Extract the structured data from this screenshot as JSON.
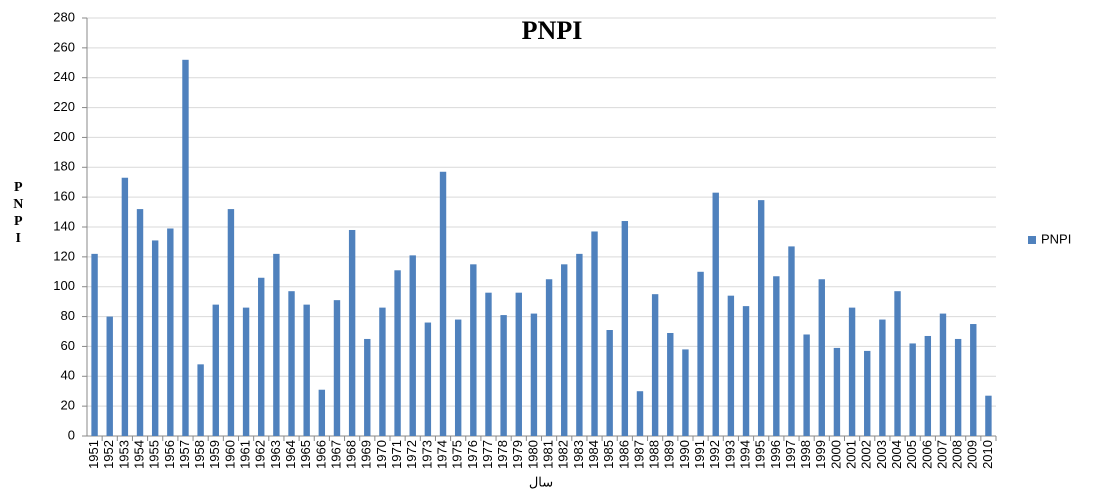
{
  "chart_data": {
    "type": "bar",
    "title": "PNPI",
    "y_label": "PNPI",
    "x_label": "سال",
    "categories": [
      "1951",
      "1952",
      "1953",
      "1954",
      "1955",
      "1956",
      "1957",
      "1958",
      "1959",
      "1960",
      "1961",
      "1962",
      "1963",
      "1964",
      "1965",
      "1966",
      "1967",
      "1968",
      "1969",
      "1970",
      "1971",
      "1972",
      "1973",
      "1974",
      "1975",
      "1976",
      "1977",
      "1978",
      "1979",
      "1980",
      "1981",
      "1982",
      "1983",
      "1984",
      "1985",
      "1986",
      "1987",
      "1988",
      "1989",
      "1990",
      "1991",
      "1992",
      "1993",
      "1994",
      "1995",
      "1996",
      "1997",
      "1998",
      "1999",
      "2000",
      "2001",
      "2002",
      "2003",
      "2004",
      "2005",
      "2006",
      "2007",
      "2008",
      "2009",
      "2010"
    ],
    "series": [
      {
        "name": "PNPI",
        "color": "#4f81bd",
        "values": [
          122,
          80,
          173,
          152,
          131,
          139,
          252,
          48,
          88,
          152,
          86,
          106,
          122,
          97,
          88,
          31,
          91,
          138,
          65,
          86,
          111,
          121,
          76,
          177,
          78,
          115,
          96,
          81,
          96,
          82,
          105,
          115,
          122,
          137,
          71,
          144,
          30,
          95,
          69,
          58,
          110,
          163,
          94,
          87,
          158,
          107,
          127,
          68,
          105,
          59,
          86,
          57,
          78,
          97,
          62,
          67,
          82,
          65,
          75,
          27
        ]
      }
    ],
    "ylim": [
      0,
      280
    ],
    "yticks": [
      0,
      20,
      40,
      60,
      80,
      100,
      120,
      140,
      160,
      180,
      200,
      220,
      240,
      260,
      280
    ],
    "grid": true,
    "legend": "right"
  }
}
